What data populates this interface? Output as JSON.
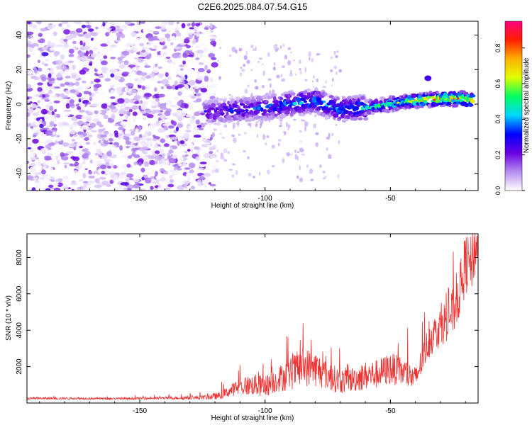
{
  "title": "C2E6.2025.084.07.54.G15",
  "chart_data": [
    {
      "type": "heatmap",
      "xlabel": "Height of straight line (km)",
      "ylabel": "Frequency (Hz)",
      "xlim": [
        -195,
        -15
      ],
      "ylim": [
        -50,
        48
      ],
      "xticks": [
        -150,
        -100,
        -50
      ],
      "xtick_labels": [
        "-150",
        "-100",
        "-50"
      ],
      "yticks": [
        -40,
        -20,
        0,
        20,
        40
      ],
      "ytick_labels": [
        "-40",
        "-20",
        "0",
        "20",
        "40"
      ],
      "grid": false,
      "noise_region_x": [
        -195,
        -120
      ],
      "signal_track": {
        "x": [
          -124,
          -110,
          -100,
          -90,
          -80,
          -70,
          -60,
          -50,
          -40,
          -30,
          -20,
          -17
        ],
        "y": [
          -5,
          -3,
          -2,
          0,
          2,
          -3,
          -2,
          0,
          2,
          3,
          3,
          2
        ],
        "peak_amplitude": [
          0.3,
          0.35,
          0.4,
          0.45,
          0.5,
          0.45,
          0.5,
          0.6,
          0.75,
          0.85,
          0.9,
          0.85
        ]
      },
      "colorbar": {
        "label": "Normalized spectral amplitude",
        "range": [
          0,
          0.95
        ],
        "ticks": [
          0.0,
          0.2,
          0.4,
          0.6,
          0.8
        ],
        "tick_labels": [
          "0.0",
          "0.2",
          "0.4",
          "0.6",
          "0.8"
        ],
        "colors": [
          "#ffffff",
          "#b48cf0",
          "#6a00e0",
          "#0000ff",
          "#00d8ff",
          "#00ff60",
          "#e0ff00",
          "#ffb000",
          "#ff2000",
          "#ff0080"
        ]
      }
    },
    {
      "type": "line",
      "xlabel": "Height of straight line (km)",
      "ylabel": "SNR (10 * v/v)",
      "xlim": [
        -195,
        -15
      ],
      "ylim": [
        0,
        9300
      ],
      "xticks": [
        -150,
        -100,
        -50
      ],
      "xtick_labels": [
        "-150",
        "-100",
        "-50"
      ],
      "yticks": [
        2000,
        4000,
        6000,
        8000
      ],
      "ytick_labels": [
        "2000",
        "4000",
        "6000",
        "8000"
      ],
      "grid": false,
      "series": [
        {
          "color": "#ee3333",
          "x": [
            -195,
            -180,
            -160,
            -140,
            -125,
            -118,
            -112,
            -105,
            -100,
            -95,
            -90,
            -85,
            -80,
            -75,
            -70,
            -65,
            -60,
            -55,
            -50,
            -45,
            -40,
            -35,
            -33,
            -30,
            -25,
            -22,
            -20,
            -18,
            -16,
            -15
          ],
          "y": [
            250,
            260,
            240,
            270,
            300,
            400,
            800,
            1000,
            900,
            1300,
            1600,
            2000,
            1900,
            1500,
            1200,
            1300,
            1500,
            1600,
            1900,
            1700,
            1300,
            3300,
            3700,
            4200,
            5000,
            6300,
            7700,
            7500,
            8500,
            8800
          ],
          "noise": [
            60,
            60,
            60,
            70,
            120,
            200,
            400,
            600,
            600,
            700,
            900,
            1100,
            1000,
            800,
            700,
            700,
            800,
            800,
            900,
            800,
            700,
            900,
            1000,
            1100,
            1300,
            1500,
            1700,
            1600,
            1500,
            1200
          ]
        }
      ]
    }
  ]
}
